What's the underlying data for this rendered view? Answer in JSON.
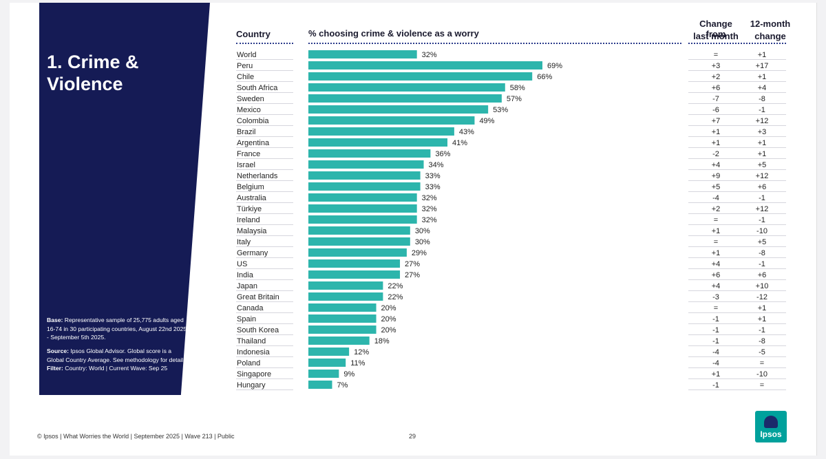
{
  "panel": {
    "title": "1. Crime & Violence",
    "base_label": "Base:",
    "base_text": " Representative sample of 25,775 adults aged 16-74 in 30 participating countries, August 22nd 2025 - September 5th 2025.",
    "source_label": "Source:",
    "source_text": " Ipsos Global Advisor. Global score is a Global Country Average. See methodology for details. ",
    "filter_label": "Filter:",
    "filter_text": " Country: World | Current Wave: Sep 25"
  },
  "headers": {
    "country": "Country",
    "measure": "% choosing crime & violence as a worry",
    "change_month_1": "Change from",
    "change_month_2": "last month",
    "change_year_1": "12-month",
    "change_year_2": "change"
  },
  "chart_data": {
    "type": "bar",
    "orientation": "horizontal",
    "title": "% choosing crime & violence as a worry",
    "xlabel": "",
    "ylabel": "Country",
    "xlim": [
      0,
      72
    ],
    "bar_color": "#2db5ac",
    "categories": [
      "World",
      "Peru",
      "Chile",
      "South Africa",
      "Sweden",
      "Mexico",
      "Colombia",
      "Brazil",
      "Argentina",
      "France",
      "Israel",
      "Netherlands",
      "Belgium",
      "Australia",
      "Türkiye",
      "Ireland",
      "Malaysia",
      "Italy",
      "Germany",
      "US",
      "India",
      "Japan",
      "Great Britain",
      "Canada",
      "Spain",
      "South Korea",
      "Thailand",
      "Indonesia",
      "Poland",
      "Singapore",
      "Hungary"
    ],
    "values": [
      32,
      69,
      66,
      58,
      57,
      53,
      49,
      43,
      41,
      36,
      34,
      33,
      33,
      32,
      32,
      32,
      30,
      30,
      29,
      27,
      27,
      22,
      22,
      20,
      20,
      20,
      18,
      12,
      11,
      9,
      7
    ],
    "value_labels": [
      "32%",
      "69%",
      "66%",
      "58%",
      "57%",
      "53%",
      "49%",
      "43%",
      "41%",
      "36%",
      "34%",
      "33%",
      "33%",
      "32%",
      "32%",
      "32%",
      "30%",
      "30%",
      "29%",
      "27%",
      "27%",
      "22%",
      "22%",
      "20%",
      "20%",
      "20%",
      "18%",
      "12%",
      "11%",
      "9%",
      "7%"
    ],
    "change_month": [
      "=",
      "+3",
      "+2",
      "+6",
      "-7",
      "-6",
      "+7",
      "+1",
      "+1",
      "-2",
      "+4",
      "+9",
      "+5",
      "-4",
      "+2",
      "=",
      "+1",
      "=",
      "+1",
      "+4",
      "+6",
      "+4",
      "-3",
      "=",
      "-1",
      "-1",
      "-1",
      "-4",
      "-4",
      "+1",
      "-1"
    ],
    "change_year": [
      "+1",
      "+17",
      "+1",
      "+4",
      "-8",
      "-1",
      "+12",
      "+3",
      "+1",
      "+1",
      "+5",
      "+12",
      "+6",
      "-1",
      "+12",
      "-1",
      "-10",
      "+5",
      "-8",
      "-1",
      "+6",
      "+10",
      "-12",
      "+1",
      "+1",
      "-1",
      "-8",
      "-5",
      "=",
      "-10",
      "="
    ]
  },
  "footer": {
    "text": "© Ipsos | What Worries the World | September 2025 | Wave 213 | Public",
    "page_number": "29",
    "logo_text": "Ipsos"
  },
  "colors": {
    "panel": "#151b55",
    "bar": "#2db5ac",
    "logo": "#00a19c"
  }
}
